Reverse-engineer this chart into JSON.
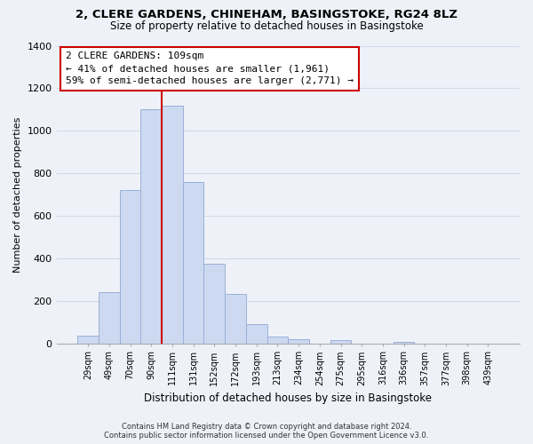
{
  "title1": "2, CLERE GARDENS, CHINEHAM, BASINGSTOKE, RG24 8LZ",
  "title2": "Size of property relative to detached houses in Basingstoke",
  "xlabel": "Distribution of detached houses by size in Basingstoke",
  "ylabel": "Number of detached properties",
  "bar_labels": [
    "29sqm",
    "49sqm",
    "70sqm",
    "90sqm",
    "111sqm",
    "131sqm",
    "152sqm",
    "172sqm",
    "193sqm",
    "213sqm",
    "234sqm",
    "254sqm",
    "275sqm",
    "295sqm",
    "316sqm",
    "336sqm",
    "357sqm",
    "377sqm",
    "398sqm",
    "439sqm"
  ],
  "bar_values": [
    35,
    240,
    720,
    1100,
    1120,
    760,
    375,
    230,
    88,
    30,
    18,
    0,
    15,
    0,
    0,
    8,
    0,
    0,
    0,
    0
  ],
  "bar_color": "#ccd9f0",
  "bar_edge_color": "#9ab0d8",
  "property_line_label": "2 CLERE GARDENS: 109sqm",
  "annotation_line1": "← 41% of detached houses are smaller (1,961)",
  "annotation_line2": "59% of semi-detached houses are larger (2,771) →",
  "annotation_box_color": "#ffffff",
  "annotation_box_edge": "#cc0000",
  "vline_color": "#cc0000",
  "ylim": [
    0,
    1400
  ],
  "yticks": [
    0,
    200,
    400,
    600,
    800,
    1000,
    1200,
    1400
  ],
  "footer1": "Contains HM Land Registry data © Crown copyright and database right 2024.",
  "footer2": "Contains public sector information licensed under the Open Government Licence v3.0.",
  "grid_color": "#d0daea",
  "background_color": "#eef2f8"
}
